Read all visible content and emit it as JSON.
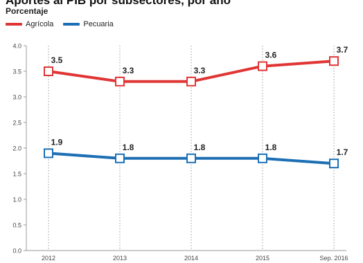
{
  "chart_data": {
    "type": "line",
    "title": "Aportes al PIB por subsectores, por año",
    "ylabel": "Porcentaje",
    "categories": [
      "2012",
      "2013",
      "2014",
      "2015",
      "Sep. 2016"
    ],
    "ylim": [
      0.0,
      4.0
    ],
    "yticks": [
      "0.0",
      "0.5",
      "1.0",
      "1.5",
      "2.0",
      "2.5",
      "3.0",
      "3.5",
      "4.0"
    ],
    "grid": "vertical-dotted",
    "legend_position": "top-left",
    "series": [
      {
        "name": "Agrícola",
        "color": "#e03535",
        "values": [
          3.5,
          3.3,
          3.3,
          3.6,
          3.7
        ],
        "labels": [
          "3.5",
          "3.3",
          "3.3",
          "3.6",
          "3.7"
        ]
      },
      {
        "name": "Pecuaria",
        "color": "#1c6fb4",
        "values": [
          1.9,
          1.8,
          1.8,
          1.8,
          1.7
        ],
        "labels": [
          "1.9",
          "1.8",
          "1.8",
          "1.8",
          "1.7"
        ]
      }
    ]
  }
}
